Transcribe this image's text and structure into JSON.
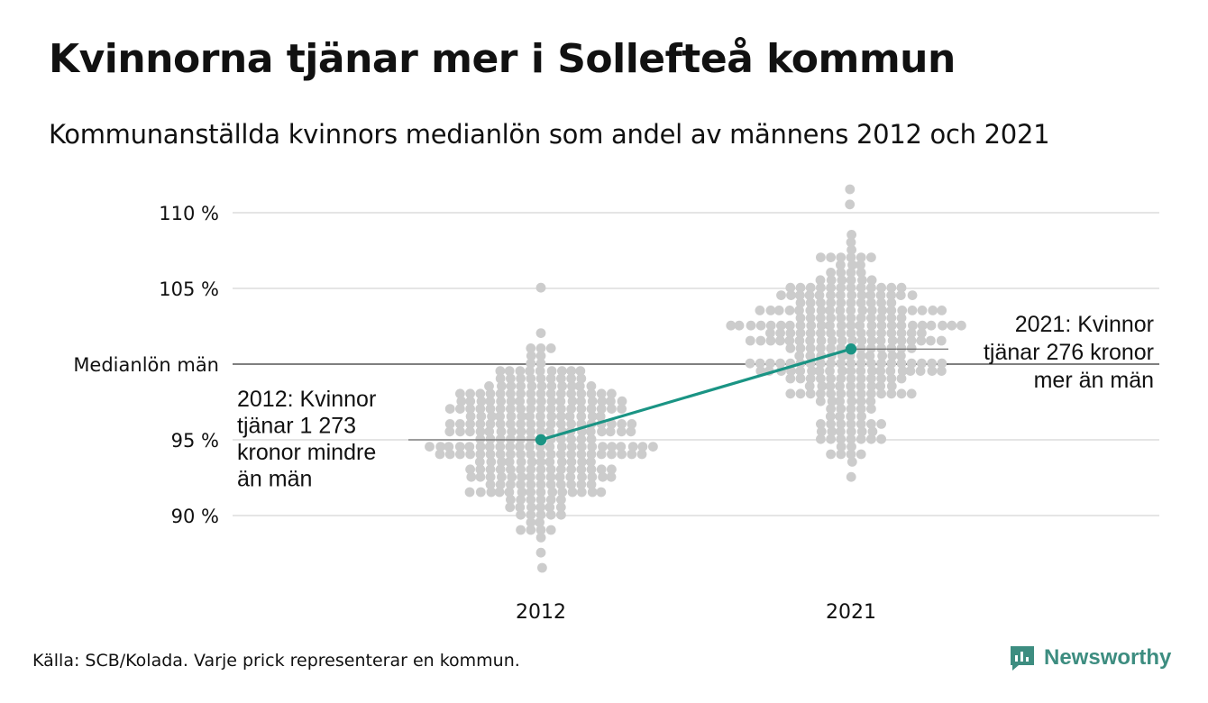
{
  "header": {
    "title": "Kvinnorna tjänar mer i Sollefteå kommun",
    "subtitle": "Kommunanställda kvinnors medianlön som andel av männens 2012 och 2021"
  },
  "footer": {
    "source": "Källa: SCB/Kolada. Varje prick representerar en kommun.",
    "brand": "Newsworthy"
  },
  "chart_data": {
    "type": "scatter",
    "title": "Kvinnorna tjänar mer i Sollefteå kommun",
    "subtitle": "Kommunanställda kvinnors medianlön som andel av männens 2012 och 2021",
    "categories": [
      "2012",
      "2021"
    ],
    "ylim": [
      86,
      112
    ],
    "y_ticks": [
      {
        "value": 90,
        "label": "90 %"
      },
      {
        "value": 95,
        "label": "95 %"
      },
      {
        "value": 100,
        "label": "Medianlön män"
      },
      {
        "value": 105,
        "label": "105 %"
      },
      {
        "value": 110,
        "label": "110 %"
      }
    ],
    "reference_line": {
      "value": 100,
      "label": "Medianlön män"
    },
    "grid": true,
    "colors": {
      "dots": "#cccccc",
      "highlight": "#1a9484",
      "grid": "#e5e5e5",
      "reference": "#333333"
    },
    "distributions": [
      {
        "category": "2012",
        "median": 95.0,
        "min": 86.5,
        "max": 105.2,
        "count": 290
      },
      {
        "category": "2021",
        "median": 101.0,
        "min": 92.6,
        "max": 111.4,
        "count": 290
      }
    ],
    "highlight": {
      "name": "Sollefteå",
      "points": [
        {
          "x": "2012",
          "y": 95.0
        },
        {
          "x": "2021",
          "y": 101.0
        }
      ]
    },
    "annotations": [
      {
        "category": "2012",
        "lines": [
          "2012: Kvinnor",
          "tjänar 1 273",
          "kronor mindre",
          "än män"
        ]
      },
      {
        "category": "2021",
        "lines": [
          "2021: Kvinnor",
          "tjänar 276 kronor",
          "mer än män"
        ]
      }
    ]
  }
}
